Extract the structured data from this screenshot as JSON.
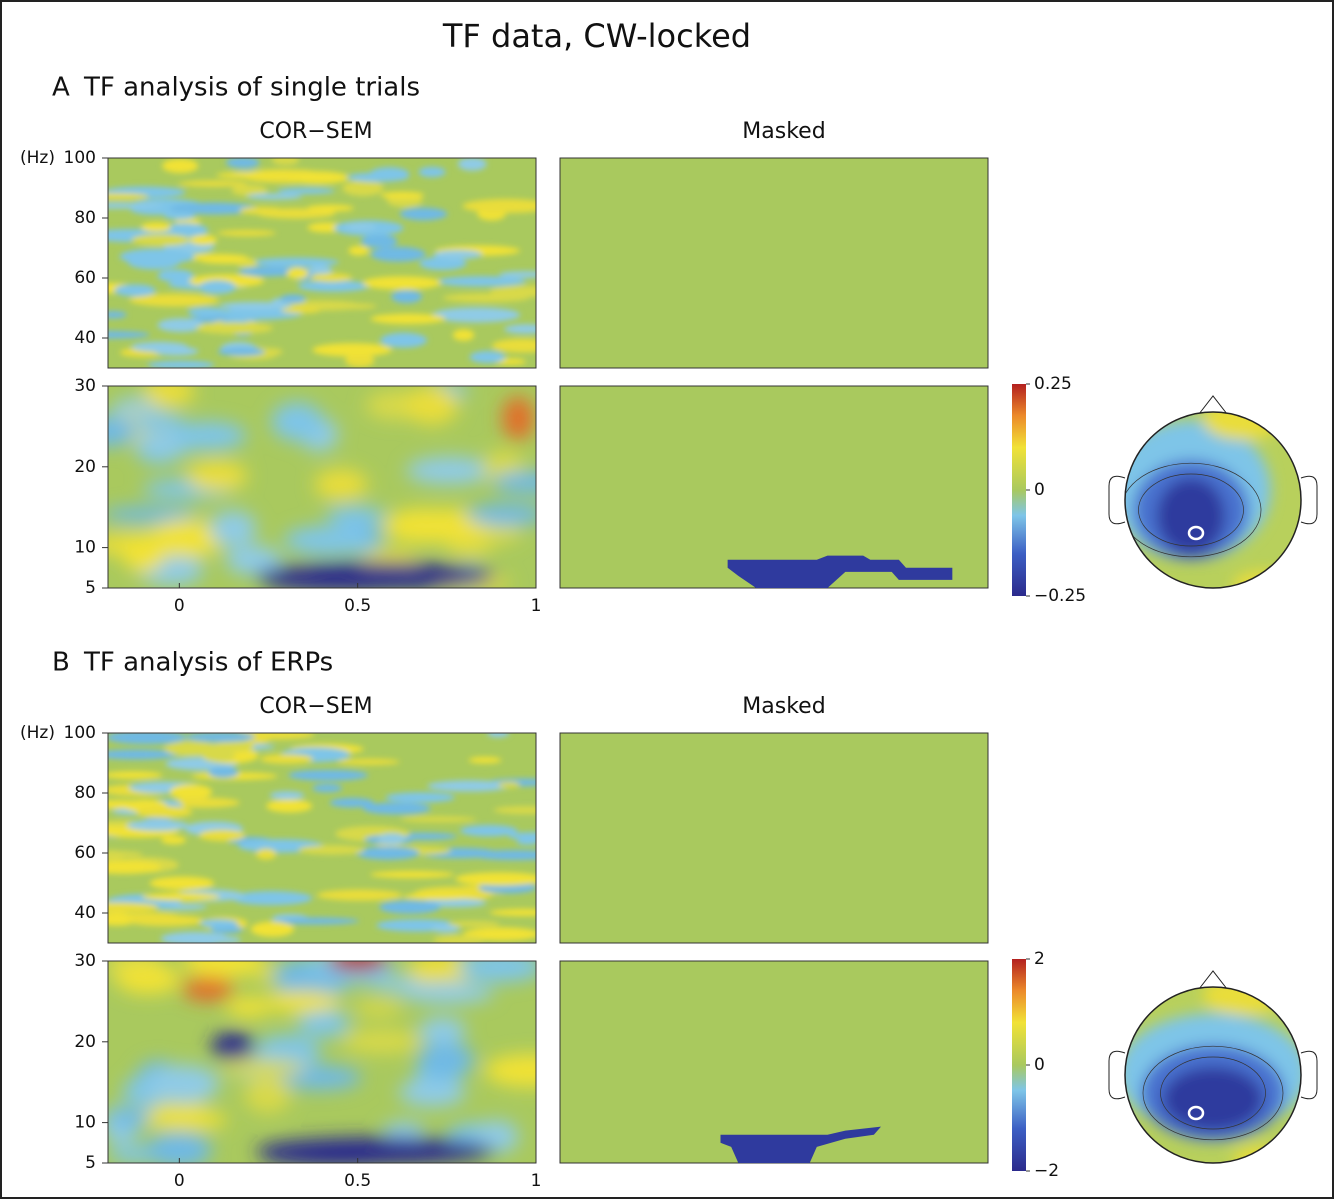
{
  "title": "TF data, CW-locked",
  "panels": [
    {
      "label": "A",
      "title": "TF analysis of single trials",
      "left_title": "COR−SEM",
      "right_title": "Masked",
      "y_unit": "(Hz)",
      "xlim": [
        -0.2,
        1
      ],
      "xticks": [
        0,
        0.5,
        1
      ],
      "high_ylim": [
        30,
        100
      ],
      "high_yticks": [
        40,
        60,
        80,
        100
      ],
      "low_ylim": [
        5,
        30
      ],
      "low_yticks": [
        5,
        10,
        20,
        30
      ],
      "clim": [
        -0.25,
        0.25
      ],
      "cticks": [
        {
          "value": -0.25,
          "label": "−0.25"
        },
        0,
        0.25
      ]
    },
    {
      "label": "B",
      "title": "TF analysis of ERPs",
      "left_title": "COR−SEM",
      "right_title": "Masked",
      "y_unit": "(Hz)",
      "xlim": [
        -0.2,
        1
      ],
      "xticks": [
        0,
        0.5,
        1
      ],
      "high_ylim": [
        30,
        100
      ],
      "high_yticks": [
        40,
        60,
        80,
        100
      ],
      "low_ylim": [
        5,
        30
      ],
      "low_yticks": [
        5,
        10,
        20,
        30
      ],
      "clim": [
        -2,
        2
      ],
      "cticks": [
        {
          "value": -2,
          "label": "−2"
        },
        0,
        2
      ]
    }
  ]
}
